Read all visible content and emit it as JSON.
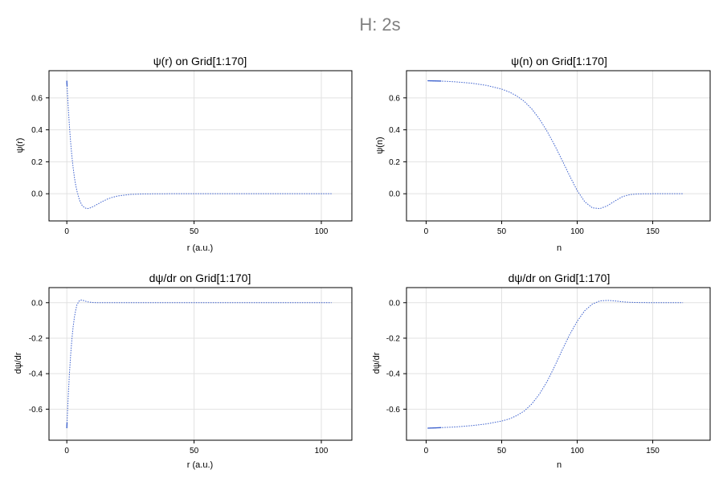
{
  "figure": {
    "suptitle": "H: 2s"
  },
  "chart_data": [
    {
      "id": "p1",
      "type": "line",
      "title": "ψ(r) on Grid[1:170]",
      "xlabel": "r (a.u.)",
      "ylabel": "ψ(r)",
      "xlim": [
        -7,
        112
      ],
      "ylim": [
        -0.17,
        0.77
      ],
      "xticks": [
        0,
        50,
        100
      ],
      "yticks": [
        0.0,
        0.2,
        0.4,
        0.6
      ],
      "color": "#3a5fcd",
      "grid": true,
      "series": [
        {
          "x": [
            0,
            0.1,
            0.3,
            0.5,
            1,
            1.5,
            2,
            2.5,
            3,
            3.5,
            4,
            5,
            6,
            7,
            8,
            9,
            10,
            12,
            14,
            16,
            18,
            20,
            25,
            30,
            40,
            50,
            60,
            70,
            80,
            90,
            100,
            104
          ],
          "y": [
            0.707,
            0.674,
            0.613,
            0.557,
            0.429,
            0.322,
            0.234,
            0.161,
            0.101,
            0.054,
            0.016,
            -0.041,
            -0.073,
            -0.088,
            -0.093,
            -0.09,
            -0.083,
            -0.066,
            -0.048,
            -0.033,
            -0.022,
            -0.014,
            -0.004,
            -0.001,
            0,
            0,
            0,
            0,
            0,
            0,
            0,
            0
          ]
        }
      ]
    },
    {
      "id": "p2",
      "type": "line",
      "title": "ψ(n) on Grid[1:170]",
      "xlabel": "n",
      "ylabel": "ψ(n)",
      "xlim": [
        -13,
        188
      ],
      "ylim": [
        -0.17,
        0.77
      ],
      "xticks": [
        0,
        50,
        100,
        150
      ],
      "yticks": [
        0.0,
        0.2,
        0.4,
        0.6
      ],
      "color": "#3a5fcd",
      "grid": true,
      "series": [
        {
          "x": [
            1,
            10,
            20,
            30,
            40,
            50,
            55,
            60,
            65,
            70,
            75,
            80,
            85,
            90,
            95,
            100,
            105,
            110,
            115,
            120,
            125,
            130,
            135,
            140,
            150,
            160,
            170
          ],
          "y": [
            0.707,
            0.705,
            0.7,
            0.692,
            0.678,
            0.655,
            0.637,
            0.612,
            0.578,
            0.53,
            0.468,
            0.392,
            0.305,
            0.21,
            0.112,
            0.02,
            -0.05,
            -0.088,
            -0.093,
            -0.075,
            -0.045,
            -0.018,
            -0.005,
            -0.001,
            0,
            0,
            0
          ]
        }
      ]
    },
    {
      "id": "p3",
      "type": "line",
      "title": "dψ/dr on Grid[1:170]",
      "xlabel": "r (a.u.)",
      "ylabel": "dψ/dr",
      "xlim": [
        -7,
        112
      ],
      "ylim": [
        -0.775,
        0.085
      ],
      "xticks": [
        0,
        50,
        100
      ],
      "yticks": [
        0.0,
        -0.2,
        -0.4,
        -0.6
      ],
      "color": "#3a5fcd",
      "grid": true,
      "series": [
        {
          "x": [
            0,
            0.1,
            0.3,
            0.5,
            1,
            1.5,
            2,
            2.5,
            3,
            3.5,
            4,
            5,
            6,
            7,
            8,
            10,
            12,
            14,
            16,
            20,
            30,
            50,
            70,
            90,
            104
          ],
          "y": [
            -0.707,
            -0.673,
            -0.607,
            -0.545,
            -0.407,
            -0.295,
            -0.205,
            -0.134,
            -0.08,
            -0.041,
            -0.011,
            0.013,
            0.015,
            0.01,
            0.005,
            0.001,
            0,
            0,
            0,
            0,
            0,
            0,
            0,
            0,
            0
          ]
        }
      ]
    },
    {
      "id": "p4",
      "type": "line",
      "title": "dψ/dr on Grid[1:170]",
      "xlabel": "n",
      "ylabel": "dψ/dr",
      "xlim": [
        -13,
        188
      ],
      "ylim": [
        -0.775,
        0.085
      ],
      "xticks": [
        0,
        50,
        100,
        150
      ],
      "yticks": [
        0.0,
        -0.2,
        -0.4,
        -0.6
      ],
      "color": "#3a5fcd",
      "grid": true,
      "series": [
        {
          "x": [
            1,
            10,
            20,
            30,
            40,
            50,
            55,
            60,
            65,
            70,
            75,
            80,
            85,
            90,
            95,
            100,
            105,
            110,
            115,
            120,
            125,
            130,
            135,
            140,
            150,
            160,
            170
          ],
          "y": [
            -0.707,
            -0.704,
            -0.7,
            -0.693,
            -0.683,
            -0.667,
            -0.655,
            -0.636,
            -0.61,
            -0.57,
            -0.515,
            -0.445,
            -0.36,
            -0.268,
            -0.18,
            -0.105,
            -0.045,
            -0.008,
            0.01,
            0.013,
            0.01,
            0.005,
            0.002,
            0.001,
            0,
            0,
            0
          ]
        }
      ]
    }
  ]
}
